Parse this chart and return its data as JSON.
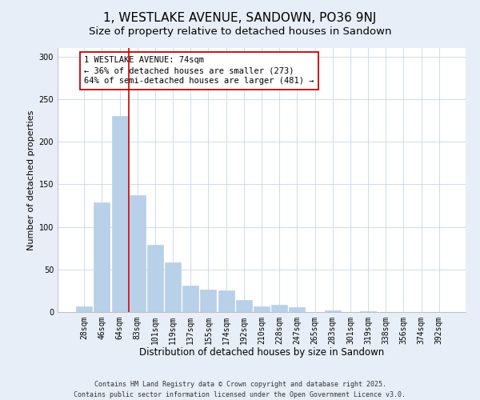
{
  "title": "1, WESTLAKE AVENUE, SANDOWN, PO36 9NJ",
  "subtitle": "Size of property relative to detached houses in Sandown",
  "xlabel": "Distribution of detached houses by size in Sandown",
  "ylabel": "Number of detached properties",
  "bar_labels": [
    "28sqm",
    "46sqm",
    "64sqm",
    "83sqm",
    "101sqm",
    "119sqm",
    "137sqm",
    "155sqm",
    "174sqm",
    "192sqm",
    "210sqm",
    "228sqm",
    "247sqm",
    "265sqm",
    "283sqm",
    "301sqm",
    "319sqm",
    "338sqm",
    "356sqm",
    "374sqm",
    "392sqm"
  ],
  "bar_values": [
    7,
    129,
    230,
    137,
    79,
    58,
    31,
    26,
    25,
    14,
    7,
    8,
    6,
    0,
    2,
    0,
    1,
    0,
    0,
    0,
    0
  ],
  "bar_color": "#b8d0e8",
  "bar_edge_color": "#b8d0e8",
  "vline_color": "#cc0000",
  "annotation_line1": "1 WESTLAKE AVENUE: 74sqm",
  "annotation_line2": "← 36% of detached houses are smaller (273)",
  "annotation_line3": "64% of semi-detached houses are larger (481) →",
  "annotation_box_color": "white",
  "annotation_box_edge_color": "#cc0000",
  "ylim": [
    0,
    310
  ],
  "yticks": [
    0,
    50,
    100,
    150,
    200,
    250,
    300
  ],
  "background_color": "#e8eef8",
  "plot_bg_color": "white",
  "grid_color": "#c8d4e8",
  "footer_line1": "Contains HM Land Registry data © Crown copyright and database right 2025.",
  "footer_line2": "Contains public sector information licensed under the Open Government Licence v3.0.",
  "title_fontsize": 11,
  "subtitle_fontsize": 9.5,
  "xlabel_fontsize": 8.5,
  "ylabel_fontsize": 8,
  "tick_fontsize": 7,
  "annotation_fontsize": 7.5,
  "footer_fontsize": 6
}
